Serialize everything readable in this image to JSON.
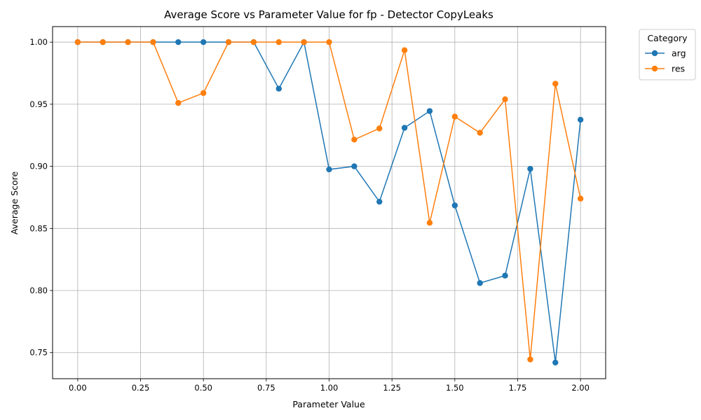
{
  "chart_data": {
    "type": "line",
    "title": "Average Score vs Parameter Value for fp - Detector CopyLeaks",
    "xlabel": "Parameter Value",
    "ylabel": "Average Score",
    "xlim": [
      -0.1,
      2.1
    ],
    "ylim": [
      0.729,
      1.0125
    ],
    "xticks": [
      0.0,
      0.25,
      0.5,
      0.75,
      1.0,
      1.25,
      1.5,
      1.75,
      2.0
    ],
    "xtick_labels": [
      "0.00",
      "0.25",
      "0.50",
      "0.75",
      "1.00",
      "1.25",
      "1.50",
      "1.75",
      "2.00"
    ],
    "yticks": [
      0.75,
      0.8,
      0.85,
      0.9,
      0.95,
      1.0
    ],
    "ytick_labels": [
      "0.75",
      "0.80",
      "0.85",
      "0.90",
      "0.95",
      "1.00"
    ],
    "grid": true,
    "legend": {
      "title": "Category",
      "placement": "outside-top-right"
    },
    "x": [
      0.0,
      0.1,
      0.2,
      0.3,
      0.4,
      0.5,
      0.6,
      0.7,
      0.8,
      0.9,
      1.0,
      1.1,
      1.2,
      1.3,
      1.4,
      1.5,
      1.6,
      1.7,
      1.8,
      1.9,
      2.0
    ],
    "series": [
      {
        "name": "arg",
        "color": "#1f77b4",
        "values": [
          1.0,
          1.0,
          1.0,
          1.0,
          1.0,
          1.0,
          1.0,
          1.0,
          0.9625,
          1.0,
          0.8975,
          0.9,
          0.8715,
          0.931,
          0.9445,
          0.8685,
          0.806,
          0.812,
          0.898,
          0.742,
          0.9375
        ]
      },
      {
        "name": "res",
        "color": "#ff7f0e",
        "values": [
          1.0,
          1.0,
          1.0,
          1.0,
          0.951,
          0.959,
          1.0,
          1.0,
          1.0,
          1.0,
          1.0,
          0.9215,
          0.9305,
          0.9935,
          0.8545,
          0.94,
          0.927,
          0.954,
          0.7445,
          0.9665,
          0.874
        ]
      }
    ]
  }
}
